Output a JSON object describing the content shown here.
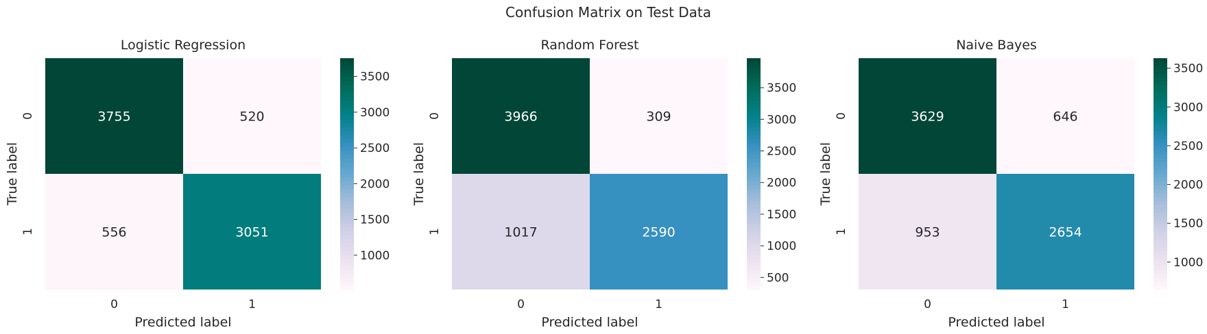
{
  "figure": {
    "title": "Confusion Matrix on Test Data"
  },
  "palette": [
    "#fff7fb",
    "#ece2f0",
    "#d0d1e6",
    "#a6bddb",
    "#67a9cf",
    "#3690c0",
    "#02818a",
    "#016c59",
    "#014636"
  ],
  "chart_data": [
    {
      "type": "heatmap",
      "title": "Logistic Regression",
      "xlabel": "Predicted label",
      "ylabel": "True label",
      "x_categories": [
        "0",
        "1"
      ],
      "y_categories": [
        "0",
        "1"
      ],
      "values": [
        [
          3755,
          520
        ],
        [
          556,
          3051
        ]
      ],
      "colorbar": {
        "min": 520,
        "max": 3755,
        "ticks": [
          1000,
          1500,
          2000,
          2500,
          3000,
          3500
        ]
      }
    },
    {
      "type": "heatmap",
      "title": "Random Forest",
      "xlabel": "Predicted label",
      "ylabel": "True label",
      "x_categories": [
        "0",
        "1"
      ],
      "y_categories": [
        "0",
        "1"
      ],
      "values": [
        [
          3966,
          309
        ],
        [
          1017,
          2590
        ]
      ],
      "colorbar": {
        "min": 309,
        "max": 3966,
        "ticks": [
          500,
          1000,
          1500,
          2000,
          2500,
          3000,
          3500
        ]
      }
    },
    {
      "type": "heatmap",
      "title": "Naive Bayes",
      "xlabel": "Predicted label",
      "ylabel": "True label",
      "x_categories": [
        "0",
        "1"
      ],
      "y_categories": [
        "0",
        "1"
      ],
      "values": [
        [
          3629,
          646
        ],
        [
          953,
          2654
        ]
      ],
      "colorbar": {
        "min": 646,
        "max": 3629,
        "ticks": [
          1000,
          1500,
          2000,
          2500,
          3000,
          3500
        ]
      }
    }
  ]
}
